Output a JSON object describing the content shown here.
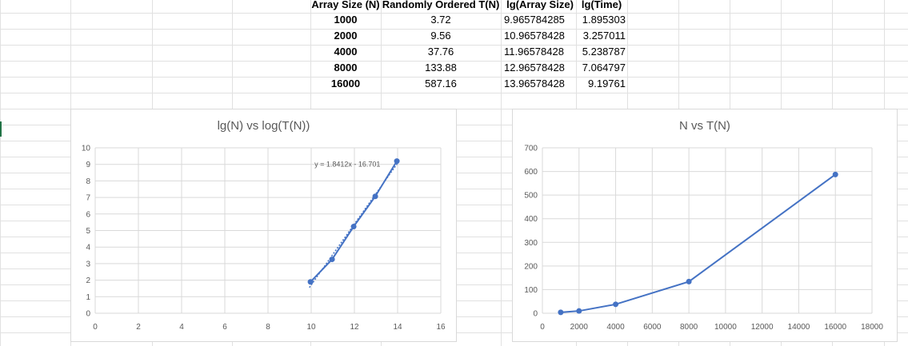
{
  "table": {
    "headers": [
      "Array Size (N)",
      "Randomly Ordered T(N)",
      "lg(Array Size)",
      "lg(Time)"
    ],
    "rows": [
      [
        "1000",
        "3.72",
        "9.965784285",
        "1.895303"
      ],
      [
        "2000",
        "9.56",
        "10.96578428",
        "3.257011"
      ],
      [
        "4000",
        "37.76",
        "11.96578428",
        "5.238787"
      ],
      [
        "8000",
        "133.88",
        "12.96578428",
        "7.064797"
      ],
      [
        "16000",
        "587.16",
        "13.96578428",
        "9.19761"
      ]
    ]
  },
  "colors": {
    "series": "#4472c4",
    "gridline": "#d9d9d9",
    "cell_grid": "#e1e1e1",
    "axis_text": "#595959",
    "selection": "#217346"
  },
  "chart_data": [
    {
      "type": "scatter",
      "title": "lg(N) vs log(T(N))",
      "x": [
        9.965784285,
        10.96578428,
        11.96578428,
        12.96578428,
        13.96578428
      ],
      "series": [
        {
          "values": [
            1.895303,
            3.257011,
            5.238787,
            7.064797,
            9.19761
          ]
        }
      ],
      "connected": true,
      "trendline": {
        "type": "linear",
        "slope": 1.8412,
        "intercept": -16.701,
        "label": "y = 1.8412x - 16.701",
        "style": "dotted"
      },
      "xlim": [
        0,
        16
      ],
      "ylim": [
        0,
        10
      ],
      "xticks": [
        0,
        2,
        4,
        6,
        8,
        10,
        12,
        14,
        16
      ],
      "yticks": [
        0,
        1,
        2,
        3,
        4,
        5,
        6,
        7,
        8,
        9,
        10
      ],
      "grid": true
    },
    {
      "type": "scatter",
      "title": "N vs T(N)",
      "x": [
        1000,
        2000,
        4000,
        8000,
        16000
      ],
      "series": [
        {
          "values": [
            3.72,
            9.56,
            37.76,
            133.88,
            587.16
          ]
        }
      ],
      "connected": true,
      "xlim": [
        0,
        18000
      ],
      "ylim": [
        0,
        700
      ],
      "xticks": [
        0,
        2000,
        4000,
        6000,
        8000,
        10000,
        12000,
        14000,
        16000,
        18000
      ],
      "yticks": [
        0,
        100,
        200,
        300,
        400,
        500,
        600,
        700
      ],
      "grid": true
    }
  ]
}
